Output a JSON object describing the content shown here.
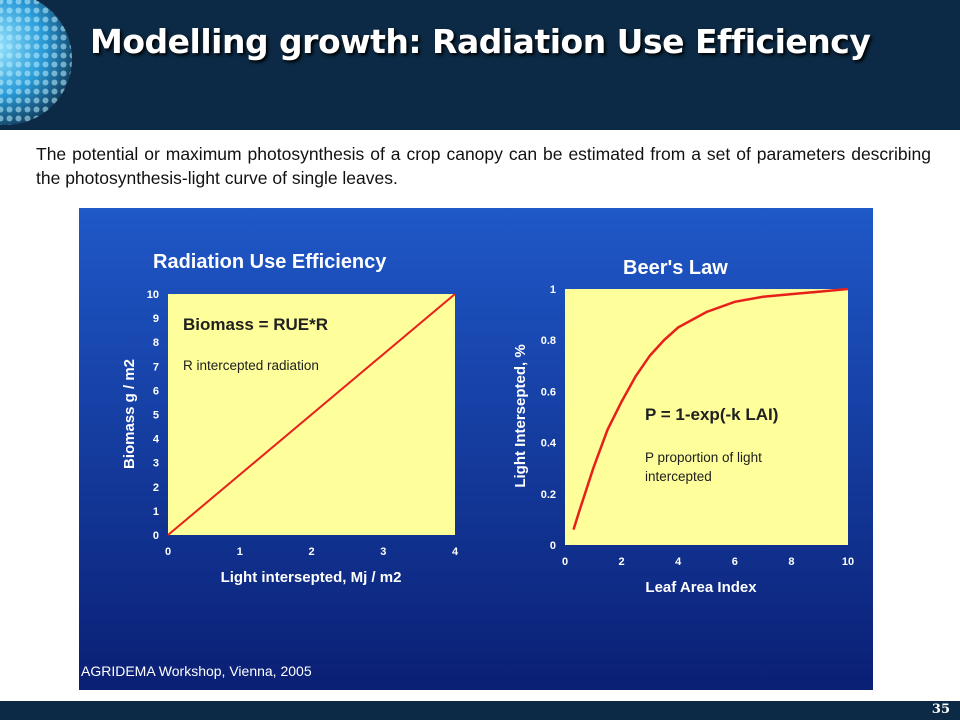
{
  "slide": {
    "title": "Modelling growth: Radiation Use Efficiency",
    "intro": "The potential or maximum photosynthesis of a crop canopy can be estimated from a set of parameters describing the photosynthesis-light curve of single leaves.",
    "page_number": "35",
    "credit": "AGRIDEMA Workshop, Vienna, 2005"
  },
  "colors": {
    "header_bg": "#0c2a45",
    "panel_top": "#1f58c8",
    "panel_bottom": "#0a1f74",
    "plot_bg": "#fefe9a",
    "line": "#e8201a"
  },
  "chart_data": [
    {
      "type": "line",
      "title": "Radiation Use Efficiency",
      "xlabel": "Light intersepted, Mj / m2",
      "ylabel": "Biomass g / m2",
      "xlim": [
        0,
        4
      ],
      "ylim": [
        0,
        10
      ],
      "x_ticks": [
        "0",
        "1",
        "2",
        "3",
        "4"
      ],
      "y_ticks": [
        "0",
        "1",
        "2",
        "3",
        "4",
        "5",
        "6",
        "7",
        "8",
        "9",
        "10"
      ],
      "grid": false,
      "legend": "none",
      "annotations": [
        "Biomass = RUE*R",
        "R intercepted radiation"
      ],
      "series": [
        {
          "x": [
            0,
            4
          ],
          "y": [
            0,
            10
          ]
        }
      ]
    },
    {
      "type": "line",
      "title": "Beer's Law",
      "xlabel": "Leaf Area Index",
      "ylabel": "Light Intersepted, %",
      "xlim": [
        0,
        10
      ],
      "ylim": [
        0,
        1
      ],
      "x_ticks": [
        "0",
        "2",
        "4",
        "6",
        "8",
        "10"
      ],
      "y_ticks": [
        "0",
        "0.2",
        "0.4",
        "0.6",
        "0.8",
        "1"
      ],
      "grid": false,
      "legend": "none",
      "annotations": [
        "P = 1-exp(-k LAI)",
        "P proportion of light",
        "intercepted"
      ],
      "series": [
        {
          "x": [
            0.3,
            0.5,
            1,
            1.5,
            2,
            2.5,
            3,
            3.5,
            4,
            5,
            6,
            7,
            8,
            9,
            10
          ],
          "y": [
            0.06,
            0.13,
            0.3,
            0.45,
            0.56,
            0.66,
            0.74,
            0.8,
            0.85,
            0.91,
            0.95,
            0.97,
            0.98,
            0.99,
            1.0
          ]
        }
      ]
    }
  ]
}
